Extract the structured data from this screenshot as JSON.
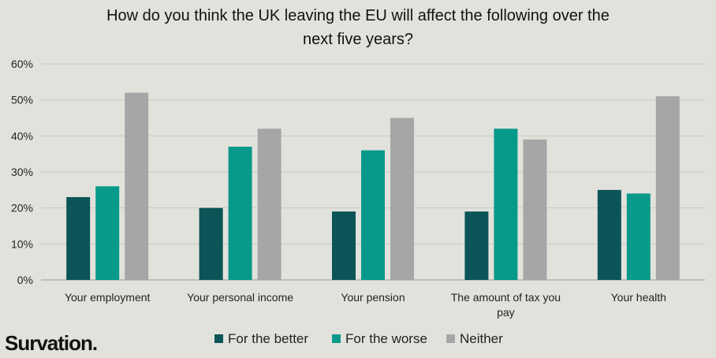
{
  "brand": {
    "logo_text": "Survation."
  },
  "colors": {
    "background": "#e2e2dc",
    "gridline": "#c8c8c2",
    "axis": "#9a9a94"
  },
  "chart_data": {
    "type": "bar",
    "title_lines": [
      "How do you think the UK leaving the EU will affect the following over the",
      "next five years?"
    ],
    "categories": [
      [
        "Your employment"
      ],
      [
        "Your personal income"
      ],
      [
        "Your pension"
      ],
      [
        "The amount of tax you",
        "pay"
      ],
      [
        "Your health"
      ]
    ],
    "series": [
      {
        "name": "For the better",
        "color": "#0b5457",
        "values": [
          23,
          20,
          19,
          19,
          25
        ]
      },
      {
        "name": "For the worse",
        "color": "#07998a",
        "values": [
          26,
          37,
          36,
          42,
          24
        ]
      },
      {
        "name": "Neither",
        "color": "#a6a6a6",
        "values": [
          52,
          42,
          45,
          39,
          51
        ]
      }
    ],
    "ylim": [
      0,
      60
    ],
    "yticks": [
      0,
      10,
      20,
      30,
      40,
      50,
      60
    ],
    "ytick_labels": [
      "0%",
      "10%",
      "20%",
      "30%",
      "40%",
      "50%",
      "60%"
    ],
    "grid": true,
    "legend_position": "bottom"
  }
}
